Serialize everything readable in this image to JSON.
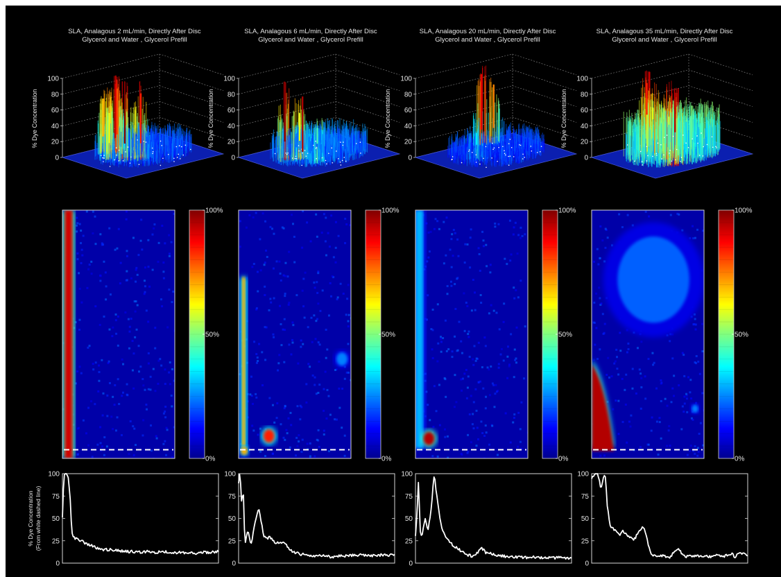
{
  "chart_data": [
    {
      "panel": 1,
      "type": "surface",
      "title": [
        "SLA, Analagous 2 mL/min, Directly After Disc",
        "Glycerol and Water , Glycerol Prefill"
      ],
      "zlabel": "% Dye Concentration",
      "zticks": [
        "0",
        "20",
        "40",
        "60",
        "80",
        "100"
      ],
      "zlim": [
        0,
        100
      ],
      "peaks": [
        {
          "x": 0.18,
          "y": 0.3,
          "z": 70
        },
        {
          "x": 0.22,
          "y": 0.42,
          "z": 80
        },
        {
          "x": 0.3,
          "y": 0.35,
          "z": 90
        },
        {
          "x": 0.52,
          "y": 0.3,
          "z": 100
        },
        {
          "x": 0.62,
          "y": 0.4,
          "z": 85
        },
        {
          "x": 0.4,
          "y": 0.22,
          "z": 60
        }
      ],
      "baseline": 22
    },
    {
      "panel": 2,
      "type": "surface",
      "title": [
        "SLA, Analagous 6 mL/min, Directly After Disc",
        "Glycerol and Water , Glycerol Prefill"
      ],
      "zlabel": "% Dye Concentration",
      "zticks": [
        "0",
        "20",
        "40",
        "60",
        "80",
        "100"
      ],
      "zlim": [
        0,
        100
      ],
      "peaks": [
        {
          "x": 0.42,
          "y": 0.2,
          "z": 100
        },
        {
          "x": 0.82,
          "y": 0.12,
          "z": 95
        },
        {
          "x": 0.5,
          "y": 0.3,
          "z": 60
        },
        {
          "x": 0.7,
          "y": 0.35,
          "z": 45
        }
      ],
      "baseline": 25
    },
    {
      "panel": 3,
      "type": "surface",
      "title": [
        "SLA, Analagous 20 mL/min, Directly After Disc",
        "Glycerol and Water , Glycerol Prefill"
      ],
      "zlabel": "% Dye Concentration",
      "zticks": [
        "0",
        "20",
        "40",
        "60",
        "80",
        "100"
      ],
      "zlim": [
        0,
        100
      ],
      "peaks": [
        {
          "x": 0.12,
          "y": 0.6,
          "z": 90
        },
        {
          "x": 0.16,
          "y": 0.7,
          "z": 75
        },
        {
          "x": 0.5,
          "y": 0.3,
          "z": 35
        }
      ],
      "baseline": 20
    },
    {
      "panel": 4,
      "type": "surface",
      "title": [
        "SLA, Analagous 35 mL/min, Directly After Disc",
        "Glycerol and Water , Glycerol Prefill"
      ],
      "zlabel": "% Dye Concentration",
      "zticks": [
        "0",
        "20",
        "40",
        "60",
        "80",
        "100"
      ],
      "zlim": [
        0,
        100
      ],
      "peaks": [
        {
          "x": 0.18,
          "y": 0.45,
          "z": 85
        },
        {
          "x": 0.85,
          "y": 0.3,
          "z": 95
        },
        {
          "x": 0.35,
          "y": 0.4,
          "z": 60
        },
        {
          "x": 0.6,
          "y": 0.4,
          "z": 55
        }
      ],
      "baseline": 45
    },
    {
      "panel": 1,
      "type": "heatmap",
      "colorbar_ticks": [
        "0%",
        "50%",
        "100%"
      ],
      "features": [
        {
          "kind": "band",
          "x0": 0.02,
          "x1": 0.09,
          "y0": 0.0,
          "y1": 1.0,
          "v": 92
        }
      ],
      "dashed_line_y": 0.965
    },
    {
      "panel": 2,
      "type": "heatmap",
      "colorbar_ticks": [
        "0%",
        "50%",
        "100%"
      ],
      "features": [
        {
          "kind": "band",
          "x0": 0.03,
          "x1": 0.06,
          "y0": 0.27,
          "y1": 0.96,
          "v": 70
        },
        {
          "kind": "blob",
          "x": 0.27,
          "y": 0.91,
          "r": 0.05,
          "v": 85
        },
        {
          "kind": "blob",
          "x": 0.05,
          "y": 0.97,
          "r": 0.03,
          "v": 70
        },
        {
          "kind": "blob",
          "x": 0.92,
          "y": 0.6,
          "r": 0.05,
          "v": 25
        }
      ],
      "dashed_line_y": 0.965
    },
    {
      "panel": 3,
      "type": "heatmap",
      "colorbar_ticks": [
        "0%",
        "50%",
        "100%"
      ],
      "features": [
        {
          "kind": "band",
          "x0": 0.0,
          "x1": 0.07,
          "y0": 0.0,
          "y1": 0.96,
          "v": 30
        },
        {
          "kind": "blob",
          "x": 0.12,
          "y": 0.92,
          "r": 0.05,
          "v": 95
        }
      ],
      "dashed_line_y": 0.965
    },
    {
      "panel": 4,
      "type": "heatmap",
      "colorbar_ticks": [
        "0%",
        "50%",
        "100%"
      ],
      "features": [
        {
          "kind": "plume",
          "x0": 0.0,
          "x1": 0.2,
          "y0": 0.62,
          "y1": 0.97,
          "v": 95
        },
        {
          "kind": "blob",
          "x": 0.55,
          "y": 0.28,
          "r": 0.32,
          "v": 22
        },
        {
          "kind": "blob",
          "x": 0.92,
          "y": 0.8,
          "r": 0.03,
          "v": 25
        }
      ],
      "dashed_line_y": 0.965
    },
    {
      "panel": 1,
      "type": "line",
      "ylabel": [
        "% Dye Concentration",
        "(From white dashed line)"
      ],
      "yticks": [
        "0",
        "25",
        "50",
        "75",
        "100"
      ],
      "ylim": [
        0,
        100
      ],
      "x": [
        0,
        0.01,
        0.02,
        0.03,
        0.04,
        0.05,
        0.06,
        0.07,
        0.08,
        0.1,
        0.12,
        0.15,
        0.18,
        0.22,
        0.26,
        0.3,
        0.35,
        0.4,
        0.45,
        0.5,
        0.55,
        0.6,
        0.65,
        0.7,
        0.75,
        0.8,
        0.85,
        0.9,
        0.95,
        1.0
      ],
      "values": [
        50,
        100,
        100,
        100,
        95,
        70,
        35,
        30,
        28,
        27,
        25,
        22,
        20,
        17,
        15,
        15,
        14,
        13,
        13,
        12,
        13,
        12,
        13,
        11,
        12,
        11,
        11,
        12,
        12,
        13
      ]
    },
    {
      "panel": 2,
      "type": "line",
      "yticks": [
        "0",
        "25",
        "50",
        "75",
        "100"
      ],
      "ylim": [
        0,
        100
      ],
      "x": [
        0,
        0.005,
        0.01,
        0.02,
        0.03,
        0.04,
        0.06,
        0.08,
        0.1,
        0.13,
        0.16,
        0.18,
        0.2,
        0.22,
        0.24,
        0.27,
        0.3,
        0.33,
        0.36,
        0.4,
        0.45,
        0.5,
        0.55,
        0.6,
        0.65,
        0.7,
        0.75,
        0.8,
        0.85,
        0.9,
        0.95,
        1.0
      ],
      "values": [
        90,
        100,
        100,
        65,
        85,
        20,
        38,
        20,
        42,
        62,
        30,
        28,
        29,
        25,
        22,
        24,
        21,
        15,
        12,
        10,
        9,
        8,
        8,
        7,
        8,
        8,
        9,
        9,
        8,
        9,
        9,
        9
      ]
    },
    {
      "panel": 3,
      "type": "line",
      "yticks": [
        "0",
        "25",
        "50",
        "75",
        "100"
      ],
      "ylim": [
        0,
        100
      ],
      "x": [
        0,
        0.01,
        0.02,
        0.03,
        0.04,
        0.05,
        0.06,
        0.07,
        0.08,
        0.1,
        0.12,
        0.14,
        0.16,
        0.18,
        0.2,
        0.24,
        0.28,
        0.32,
        0.36,
        0.4,
        0.42,
        0.45,
        0.5,
        0.55,
        0.6,
        0.65,
        0.7,
        0.75,
        0.8,
        0.85,
        0.9,
        0.95,
        1.0
      ],
      "values": [
        30,
        55,
        95,
        35,
        28,
        40,
        50,
        45,
        35,
        60,
        100,
        70,
        45,
        35,
        28,
        20,
        15,
        10,
        8,
        12,
        18,
        12,
        10,
        8,
        7,
        7,
        6,
        7,
        6,
        6,
        6,
        6,
        5
      ]
    },
    {
      "panel": 4,
      "type": "line",
      "yticks": [
        "0",
        "25",
        "50",
        "75",
        "100"
      ],
      "ylim": [
        0,
        100
      ],
      "x": [
        0,
        0.01,
        0.02,
        0.04,
        0.06,
        0.08,
        0.09,
        0.1,
        0.12,
        0.14,
        0.16,
        0.18,
        0.2,
        0.22,
        0.24,
        0.26,
        0.28,
        0.3,
        0.32,
        0.34,
        0.36,
        0.38,
        0.4,
        0.45,
        0.5,
        0.55,
        0.6,
        0.65,
        0.7,
        0.75,
        0.8,
        0.85,
        0.9,
        0.92,
        0.95,
        1.0
      ],
      "values": [
        95,
        98,
        100,
        100,
        82,
        100,
        95,
        65,
        40,
        38,
        35,
        30,
        36,
        32,
        30,
        26,
        28,
        35,
        40,
        38,
        22,
        10,
        9,
        8,
        7,
        16,
        7,
        8,
        8,
        7,
        9,
        8,
        10,
        7,
        12,
        8
      ]
    }
  ]
}
